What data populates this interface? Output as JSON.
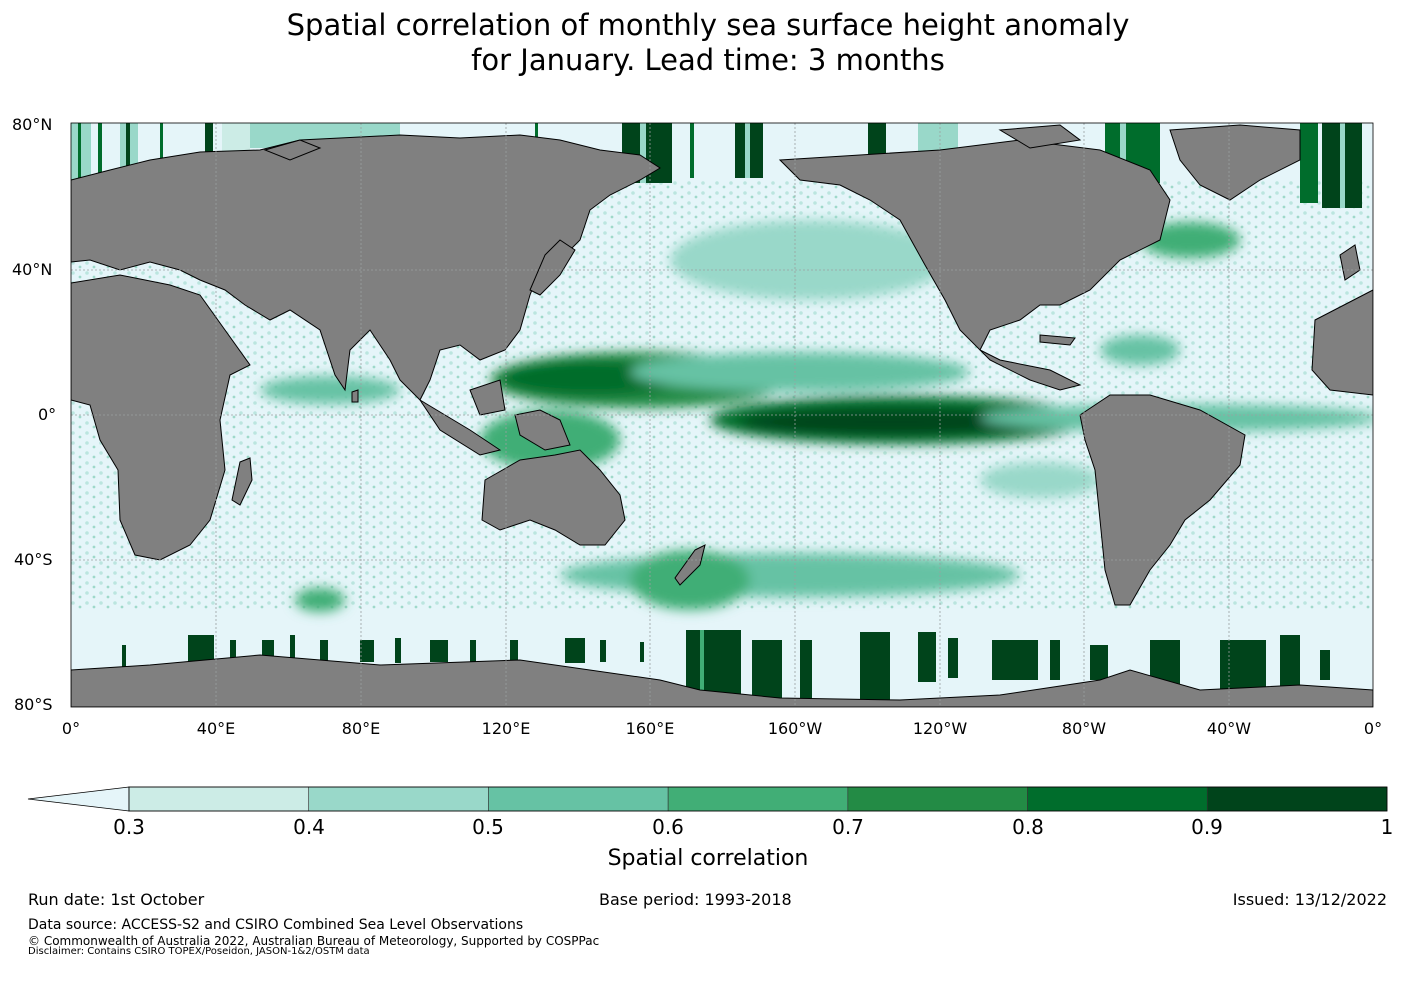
{
  "title": {
    "line1": "Spatial correlation of monthly sea surface height anomaly",
    "line2": "for January. Lead time: 3 months"
  },
  "map": {
    "lat_labels": [
      "80°N",
      "40°N",
      "0°",
      "40°S",
      "80°S"
    ],
    "lon_labels": [
      "0°",
      "40°E",
      "80°E",
      "120°E",
      "160°E",
      "160°W",
      "120°W",
      "80°W",
      "40°W",
      "0°"
    ],
    "colors": {
      "ocean_base": "#e5f5f9",
      "land": "#808080",
      "coast": "#000000",
      "grid": "#9aa0a0"
    }
  },
  "colorbar": {
    "title": "Spatial correlation",
    "ticks": [
      "0.3",
      "0.4",
      "0.5",
      "0.6",
      "0.7",
      "0.8",
      "0.9",
      "1"
    ],
    "levels": [
      0.3,
      0.4,
      0.5,
      0.6,
      0.7,
      0.8,
      0.9,
      1.0
    ],
    "colors": [
      "#ccece6",
      "#99d8c9",
      "#66c2a4",
      "#41ae76",
      "#238b45",
      "#006d2c",
      "#00441b"
    ],
    "under_color": "#e5f5f9"
  },
  "footer": {
    "run_date": "Run date: 1st October",
    "base_period": "Base period: 1993-2018",
    "issued": "Issued: 13/12/2022",
    "data_source": "Data source: ACCESS-S2 and CSIRO Combined Sea Level Observations",
    "copyright": "© Commonwealth of Australia 2022, Australian Bureau of Meteorology, Supported by COSPPac",
    "disclaimer": "Disclaimer: Contains CSIRO TOPEX/Poseidon, JASON-1&2/OSTM data"
  }
}
